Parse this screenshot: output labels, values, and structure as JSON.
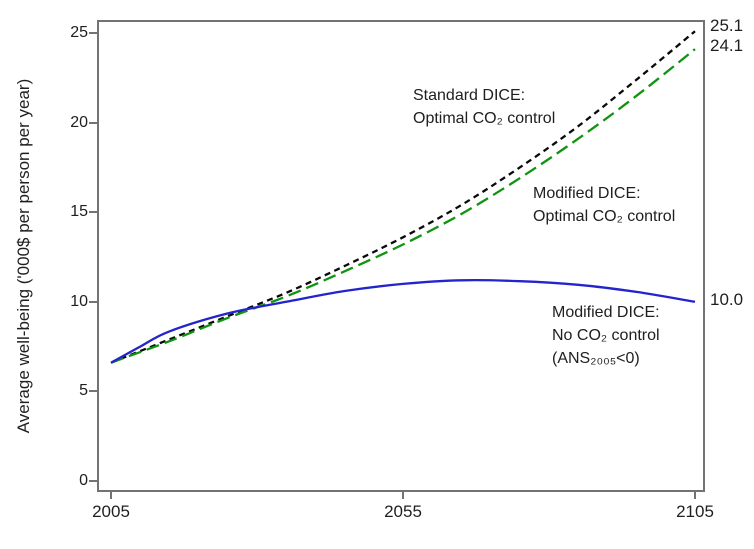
{
  "annotations": {
    "standard_dice": {
      "line1": "Standard DICE:",
      "line2": "Optimal CO₂ control"
    },
    "modified_dice_optimal": {
      "line1": "Modified DICE:",
      "line2": "Optimal CO₂ control"
    },
    "modified_dice_no_control": {
      "line1": "Modified DICE:",
      "line2": "No CO₂ control",
      "line3": "(ANS₂₀₀₅<0)"
    }
  },
  "chart_data": {
    "type": "line",
    "title": "",
    "xlabel": "",
    "ylabel": "Average well-being ('000$ per person per year)",
    "xlim": [
      2005,
      2105
    ],
    "ylim": [
      0,
      25
    ],
    "x_ticks": [
      "2005",
      "2055",
      "2105"
    ],
    "y_ticks": [
      "0",
      "5",
      "10",
      "15",
      "20",
      "25"
    ],
    "grid": false,
    "legend_position": "inline-annotations",
    "axis_color": "#737373",
    "series": [
      {
        "id": "standard-dice-optimal",
        "name": "Standard DICE: Optimal CO₂ control",
        "color": "#0a0a0a",
        "dash": "short-dash",
        "x": [
          2005,
          2015,
          2025,
          2035,
          2045,
          2055,
          2065,
          2075,
          2085,
          2095,
          2105
        ],
        "values": [
          6.6,
          7.9,
          9.2,
          10.5,
          12.0,
          13.6,
          15.4,
          17.5,
          19.8,
          22.4,
          25.1
        ],
        "end_label": "25.1"
      },
      {
        "id": "modified-dice-optimal",
        "name": "Modified DICE: Optimal CO₂ control",
        "color": "#109410",
        "dash": "long-dash",
        "x": [
          2005,
          2015,
          2025,
          2035,
          2045,
          2055,
          2065,
          2075,
          2085,
          2095,
          2105
        ],
        "values": [
          6.6,
          7.8,
          9.1,
          10.3,
          11.7,
          13.2,
          14.9,
          16.9,
          19.1,
          21.5,
          24.1
        ],
        "end_label": "24.1"
      },
      {
        "id": "modified-dice-no-control",
        "name": "Modified DICE: No CO₂ control (ANS₂₀₀₅<0)",
        "color": "#2424cc",
        "dash": "solid",
        "x": [
          2005,
          2010,
          2015,
          2025,
          2035,
          2045,
          2055,
          2065,
          2075,
          2085,
          2095,
          2105
        ],
        "values": [
          6.6,
          7.5,
          8.35,
          9.35,
          10.0,
          10.6,
          11.0,
          11.2,
          11.15,
          10.95,
          10.55,
          10.0
        ],
        "end_label": "10.0"
      }
    ]
  }
}
